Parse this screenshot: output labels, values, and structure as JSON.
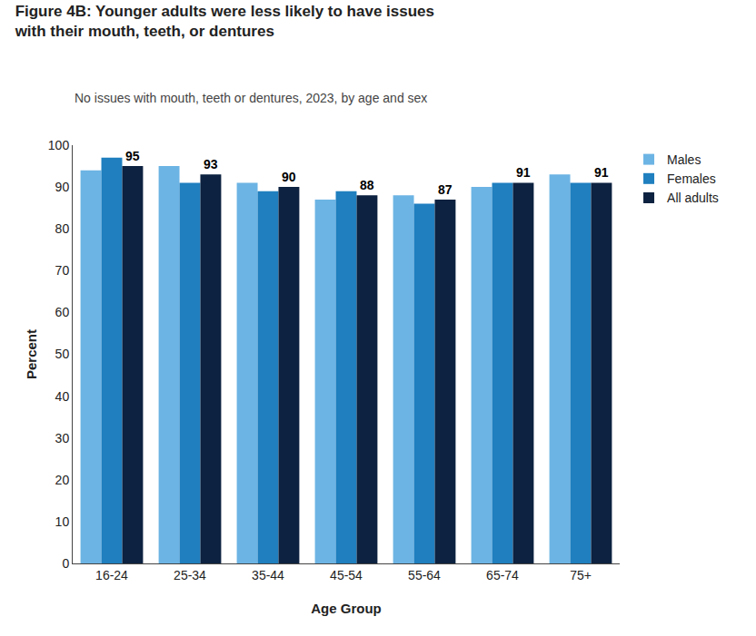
{
  "chart_data": {
    "type": "bar",
    "title": "Figure 4B: Younger adults were less likely to have issues\nwith their mouth, teeth, or dentures",
    "subtitle": "No issues with mouth, teeth or dentures, 2023, by age and sex",
    "xlabel": "Age Group",
    "ylabel": "Percent",
    "categories": [
      "16-24",
      "25-34",
      "35-44",
      "45-54",
      "55-64",
      "65-74",
      "75+"
    ],
    "series": [
      {
        "name": "Males",
        "color": "#6CB4E4",
        "values": [
          94,
          95,
          91,
          87,
          88,
          90,
          93
        ]
      },
      {
        "name": "Females",
        "color": "#1F7FBF",
        "values": [
          97,
          91,
          89,
          89,
          86,
          91,
          91
        ]
      },
      {
        "name": "All adults",
        "color": "#0D2240",
        "values": [
          95,
          93,
          90,
          88,
          87,
          91,
          91
        ],
        "data_labels": true
      }
    ],
    "ylim": [
      0,
      100
    ],
    "yticks": [
      0,
      10,
      20,
      30,
      40,
      50,
      60,
      70,
      80,
      90,
      100
    ],
    "grid": false,
    "legend": "top right"
  }
}
